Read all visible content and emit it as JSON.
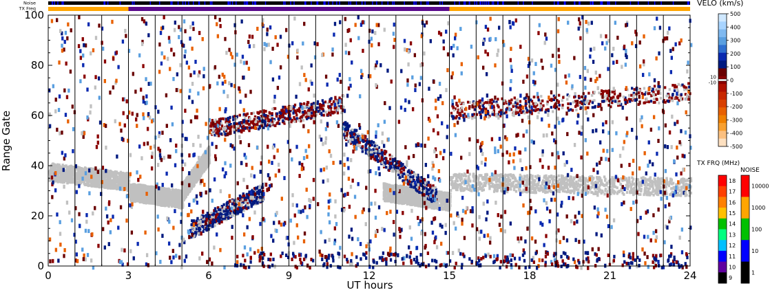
{
  "chart_data": {
    "type": "heatmap",
    "xlabel": "UT hours",
    "ylabel": "Range Gate",
    "xlim": [
      0,
      24
    ],
    "ylim": [
      0,
      100
    ],
    "x_ticks": [
      "0",
      "3",
      "6",
      "9",
      "12",
      "15",
      "18",
      "21",
      "24"
    ],
    "y_ticks": [
      "0",
      "20",
      "40",
      "60",
      "80",
      "100"
    ],
    "grid": "vertical lines every hour",
    "top_strips": {
      "noise_label": "Noise",
      "txfreq_label": "TX Freq",
      "txfreq_segments": [
        {
          "start": 0,
          "end": 3,
          "color": "#ffa500"
        },
        {
          "start": 3,
          "end": 15,
          "color": "#5a0a8c"
        },
        {
          "start": 15,
          "end": 24,
          "color": "#ffa500"
        }
      ]
    },
    "velocity_scale": {
      "title": "VELO (km/s)",
      "ticks": [
        "500",
        "400",
        "300",
        "200",
        "100",
        "0",
        "-100",
        "-200",
        "-300",
        "-400",
        "-500"
      ],
      "zero_band_labels": [
        "10",
        "-10"
      ],
      "colors": [
        "#cfe8ff",
        "#a8d4ff",
        "#7fb9f0",
        "#5a9fe0",
        "#2f6fd0",
        "#0a2ab0",
        "#001a80",
        "#6a0000",
        "#8a0000",
        "#b01000",
        "#c82800",
        "#d84000",
        "#e86000",
        "#f08000",
        "#f8a030",
        "#fbc080",
        "#fde0c0"
      ]
    },
    "txfreq_scale": {
      "title": "TX FRQ (MHz)",
      "ticks": [
        "18",
        "17",
        "16",
        "15",
        "14",
        "13",
        "12",
        "11",
        "10",
        "9"
      ],
      "colors": [
        "#ff0000",
        "#ff4000",
        "#ff8000",
        "#ffc000",
        "#00c000",
        "#00ff80",
        "#00c0ff",
        "#0000ff",
        "#6000a0",
        "#000000"
      ]
    },
    "noise_scale": {
      "title": "NOISE",
      "ticks": [
        "10000",
        "1000",
        "100",
        "10",
        "1"
      ],
      "colors": [
        "#ff0000",
        "#ffa500",
        "#00c000",
        "#0000ff",
        "#000000"
      ]
    },
    "features": [
      {
        "name": "ground scatter early",
        "hours": [
          0,
          3
        ],
        "gate_start": 38,
        "gate_end": 34,
        "color": "#c0c0c0"
      },
      {
        "name": "ground scatter band 3-5",
        "hours": [
          3,
          5
        ],
        "gate_start": 30,
        "gate_end": 27,
        "color": "#c0c0c0"
      },
      {
        "name": "ground scatter rising 5-6",
        "hours": [
          5,
          6
        ],
        "gate_start": 30,
        "gate_end": 45,
        "color": "#c0c0c0"
      },
      {
        "name": "ground scatter 12-15",
        "hours": [
          12.5,
          15
        ],
        "gate_start": 30,
        "gate_end": 26,
        "color": "#c0c0c0"
      },
      {
        "name": "ground scatter 15-24",
        "hours": [
          15,
          24
        ],
        "gate_start": 34,
        "gate_end": 32,
        "color": "#c0c0c0"
      },
      {
        "name": "ionospheric echoes rising 5.3-8",
        "hours": [
          5.3,
          8
        ],
        "gate_start": 15,
        "gate_end": 30,
        "color": "#001a80"
      },
      {
        "name": "descending echoes 11-14",
        "hours": [
          11,
          14.5
        ],
        "gate_start": 55,
        "gate_end": 28,
        "color": "#001a80"
      },
      {
        "name": "upper echoes 6-11",
        "hours": [
          6,
          11
        ],
        "gate_start": 55,
        "gate_end": 65,
        "color": "#8a0000"
      },
      {
        "name": "upper echoes 15-24",
        "hours": [
          15,
          24
        ],
        "gate_start": 62,
        "gate_end": 70,
        "color": "#8a0000"
      }
    ]
  }
}
